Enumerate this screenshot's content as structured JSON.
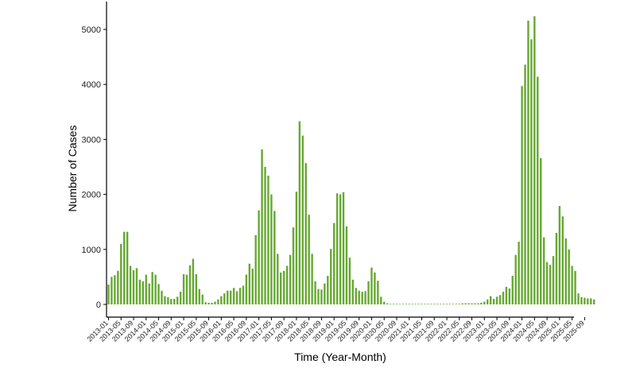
{
  "chart_data": {
    "type": "bar",
    "title": "",
    "xlabel": "Time (Year-Month)",
    "ylabel": "Number of Cases",
    "ylim": [
      0,
      5400
    ],
    "y_ticks": [
      0,
      1000,
      2000,
      3000,
      4000,
      5000
    ],
    "bar_color": "#66a832",
    "grid": false,
    "legend": "none",
    "x_tick_labels": [
      "2013-01",
      "2013-05",
      "2013-09",
      "2014-01",
      "2014-05",
      "2014-09",
      "2015-01",
      "2015-05",
      "2015-09",
      "2016-01",
      "2016-05",
      "2016-09",
      "2017-01",
      "2017-05",
      "2017-09",
      "2018-01",
      "2018-05",
      "2018-09",
      "2019-01",
      "2019-05",
      "2019-09",
      "2020-01",
      "2020-05",
      "2020-09",
      "2021-01",
      "2021-05",
      "2021-09",
      "2022-01",
      "2022-05",
      "2022-09",
      "2023-01",
      "2023-05",
      "2023-09",
      "2024-01",
      "2024-05",
      "2024-09",
      "2025-01",
      "2025-05",
      "2025-09"
    ],
    "series": [
      {
        "start": "2013-01",
        "values": [
          360,
          500,
          530,
          610,
          1100,
          1320,
          1320,
          700,
          620,
          660,
          450,
          420,
          540,
          380,
          590,
          540,
          370,
          250,
          150,
          130,
          100,
          100,
          140,
          230,
          550,
          540,
          710,
          830,
          550,
          280,
          180,
          40,
          30,
          30,
          50,
          90,
          150,
          200,
          250,
          250,
          300,
          240,
          300,
          340,
          540,
          740,
          650,
          1260,
          1710,
          2820,
          2500,
          2340,
          2000,
          1700,
          920,
          580,
          610,
          700,
          900,
          1400,
          2050,
          3330,
          3070,
          2570,
          1630,
          920,
          420,
          280,
          270,
          380,
          520,
          1010,
          1480,
          2020,
          2000,
          2040,
          1420,
          850,
          450,
          300,
          250,
          230,
          240,
          420,
          670,
          580,
          430,
          140,
          50,
          20,
          10,
          10,
          10,
          10,
          10,
          10,
          10,
          10,
          10,
          10,
          10,
          10,
          10,
          10,
          10,
          10,
          10,
          10,
          10,
          10,
          10,
          10,
          10,
          20,
          20,
          20,
          20,
          20,
          20,
          30,
          50,
          90,
          150,
          100,
          140,
          170,
          230,
          320,
          290,
          520,
          900,
          1140,
          3970,
          4360,
          5160,
          4820,
          5240,
          4140,
          2660,
          1220,
          770,
          720,
          880,
          1300,
          1790,
          1600,
          1200,
          1000,
          700,
          610,
          200,
          130,
          120,
          110,
          110,
          90
        ]
      }
    ]
  }
}
